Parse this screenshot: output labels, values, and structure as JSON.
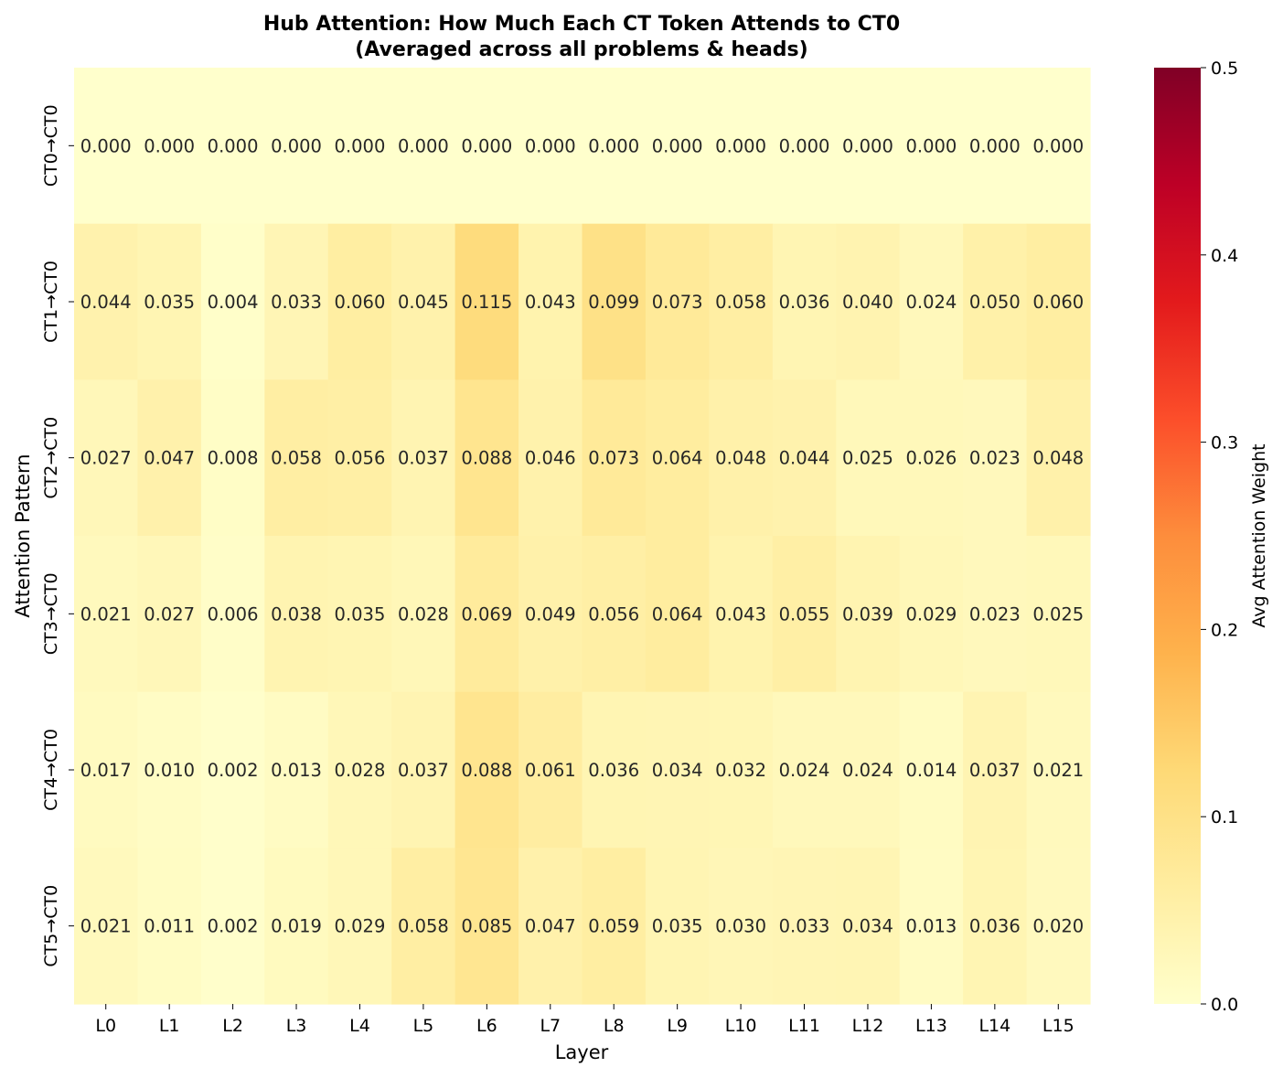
{
  "chart_data": {
    "type": "heatmap",
    "title_lines": [
      "Hub Attention: How Much Each CT Token Attends to CT0",
      "(Averaged across all problems & heads)"
    ],
    "xlabel": "Layer",
    "ylabel": "Attention Pattern",
    "x_categories": [
      "L0",
      "L1",
      "L2",
      "L3",
      "L4",
      "L5",
      "L6",
      "L7",
      "L8",
      "L9",
      "L10",
      "L11",
      "L12",
      "L13",
      "L14",
      "L15"
    ],
    "y_categories": [
      "CT0→CT0",
      "CT1→CT0",
      "CT2→CT0",
      "CT3→CT0",
      "CT4→CT0",
      "CT5→CT0"
    ],
    "values": [
      [
        0.0,
        0.0,
        0.0,
        0.0,
        0.0,
        0.0,
        0.0,
        0.0,
        0.0,
        0.0,
        0.0,
        0.0,
        0.0,
        0.0,
        0.0,
        0.0
      ],
      [
        0.044,
        0.035,
        0.004,
        0.033,
        0.06,
        0.045,
        0.115,
        0.043,
        0.099,
        0.073,
        0.058,
        0.036,
        0.04,
        0.024,
        0.05,
        0.06
      ],
      [
        0.027,
        0.047,
        0.008,
        0.058,
        0.056,
        0.037,
        0.088,
        0.046,
        0.073,
        0.064,
        0.048,
        0.044,
        0.025,
        0.026,
        0.023,
        0.048
      ],
      [
        0.021,
        0.027,
        0.006,
        0.038,
        0.035,
        0.028,
        0.069,
        0.049,
        0.056,
        0.064,
        0.043,
        0.055,
        0.039,
        0.029,
        0.023,
        0.025
      ],
      [
        0.017,
        0.01,
        0.002,
        0.013,
        0.028,
        0.037,
        0.088,
        0.061,
        0.036,
        0.034,
        0.032,
        0.024,
        0.024,
        0.014,
        0.037,
        0.021
      ],
      [
        0.021,
        0.011,
        0.002,
        0.019,
        0.029,
        0.058,
        0.085,
        0.047,
        0.059,
        0.035,
        0.03,
        0.033,
        0.034,
        0.013,
        0.036,
        0.02
      ]
    ],
    "value_format_decimals": 3,
    "colormap": "YlOrRd",
    "colorbar": {
      "label": "Avg Attention Weight",
      "range": [
        0,
        0.5
      ],
      "ticks": [
        0.0,
        0.1,
        0.2,
        0.3,
        0.4,
        0.5
      ],
      "tick_labels": [
        "0.0",
        "0.1",
        "0.2",
        "0.3",
        "0.4",
        "0.5"
      ]
    },
    "colormap_stops": [
      "#ffffcc",
      "#ffeda0",
      "#fed976",
      "#feb24c",
      "#fd8d3c",
      "#fc4e2a",
      "#e31a1c",
      "#bd0026",
      "#800026"
    ]
  }
}
